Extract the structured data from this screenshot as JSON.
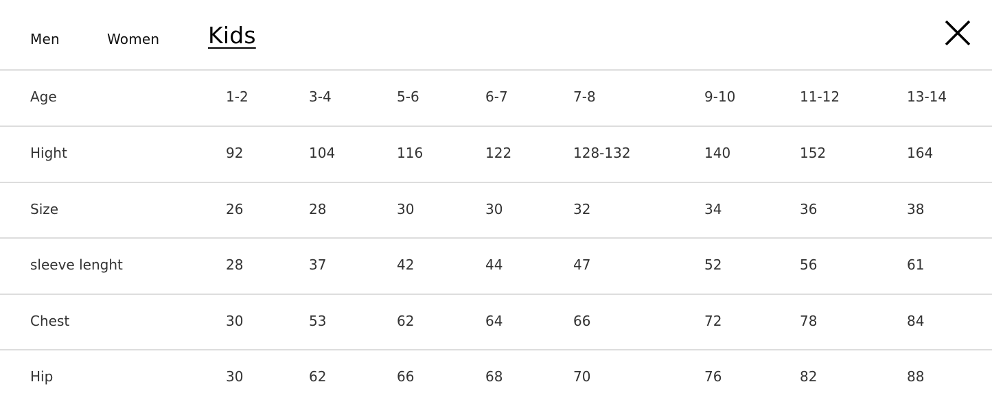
{
  "tabs": [
    {
      "label": "Men",
      "active": false
    },
    {
      "label": "Women",
      "active": false
    },
    {
      "label": "Kids",
      "active": true
    }
  ],
  "close_icon": "close-icon",
  "table": {
    "rows": [
      {
        "label": "Age",
        "values": [
          "1-2",
          "3-4",
          "5-6",
          "6-7",
          "7-8",
          "9-10",
          "11-12",
          "13-14"
        ]
      },
      {
        "label": "Hight",
        "values": [
          "92",
          "104",
          "116",
          "122",
          "128-132",
          "140",
          "152",
          "164"
        ]
      },
      {
        "label": "Size",
        "values": [
          "26",
          "28",
          "30",
          "30",
          "32",
          "34",
          "36",
          "38"
        ]
      },
      {
        "label": "sleeve lenght",
        "values": [
          "28",
          "37",
          "42",
          "44",
          "47",
          "52",
          "56",
          "61"
        ]
      },
      {
        "label": "Chest",
        "values": [
          "30",
          "53",
          "62",
          "64",
          "66",
          "72",
          "78",
          "84"
        ]
      },
      {
        "label": "Hip",
        "values": [
          "30",
          "62",
          "66",
          "68",
          "70",
          "76",
          "82",
          "88"
        ]
      }
    ]
  }
}
